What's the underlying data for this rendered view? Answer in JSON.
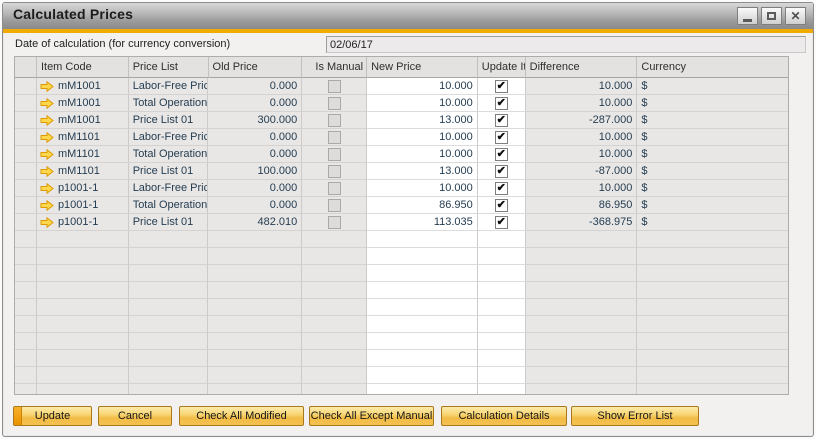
{
  "window": {
    "title": "Calculated Prices",
    "controls": {
      "minimize": "minimize",
      "maximize": "maximize",
      "close": "close"
    }
  },
  "header": {
    "date_label": "Date of calculation (for currency conversion)",
    "date_value": "02/06/17"
  },
  "table": {
    "columns": [
      "Item Code",
      "Price List",
      "Old Price",
      "Is Manual",
      "New Price",
      "Update It",
      "Difference",
      "Currency"
    ],
    "rows": [
      {
        "item_code": "mM1001",
        "price_list": "Labor-Free Price",
        "old_price": "0.000",
        "is_manual": false,
        "new_price": "10.000",
        "update_it": true,
        "difference": "10.000",
        "currency": "$"
      },
      {
        "item_code": "mM1001",
        "price_list": "Total Operation (",
        "old_price": "0.000",
        "is_manual": false,
        "new_price": "10.000",
        "update_it": true,
        "difference": "10.000",
        "currency": "$"
      },
      {
        "item_code": "mM1001",
        "price_list": "Price List 01",
        "old_price": "300.000",
        "is_manual": false,
        "new_price": "13.000",
        "update_it": true,
        "difference": "-287.000",
        "currency": "$"
      },
      {
        "item_code": "mM1101",
        "price_list": "Labor-Free Price",
        "old_price": "0.000",
        "is_manual": false,
        "new_price": "10.000",
        "update_it": true,
        "difference": "10.000",
        "currency": "$"
      },
      {
        "item_code": "mM1101",
        "price_list": "Total Operation (",
        "old_price": "0.000",
        "is_manual": false,
        "new_price": "10.000",
        "update_it": true,
        "difference": "10.000",
        "currency": "$"
      },
      {
        "item_code": "mM1101",
        "price_list": "Price List 01",
        "old_price": "100.000",
        "is_manual": false,
        "new_price": "13.000",
        "update_it": true,
        "difference": "-87.000",
        "currency": "$"
      },
      {
        "item_code": "p1001-1",
        "price_list": "Labor-Free Price",
        "old_price": "0.000",
        "is_manual": false,
        "new_price": "10.000",
        "update_it": true,
        "difference": "10.000",
        "currency": "$"
      },
      {
        "item_code": "p1001-1",
        "price_list": "Total Operation (",
        "old_price": "0.000",
        "is_manual": false,
        "new_price": "86.950",
        "update_it": true,
        "difference": "86.950",
        "currency": "$"
      },
      {
        "item_code": "p1001-1",
        "price_list": "Price List 01",
        "old_price": "482.010",
        "is_manual": false,
        "new_price": "113.035",
        "update_it": true,
        "difference": "-368.975",
        "currency": "$"
      }
    ],
    "empty_row_count": 10
  },
  "buttons": [
    {
      "label": "Update",
      "default": true
    },
    {
      "label": "Cancel",
      "default": false
    },
    {
      "label": "Check All Modified",
      "default": false
    },
    {
      "label": "Check All Except Manual",
      "default": false
    },
    {
      "label": "Calculation Details",
      "default": false
    },
    {
      "label": "Show Error List",
      "default": false
    }
  ],
  "colors": {
    "accent_gold": "#f0ab00",
    "button_face": "#f4c151",
    "link_arrow": "#ffd74d",
    "link_arrow_border": "#dd9b00"
  }
}
